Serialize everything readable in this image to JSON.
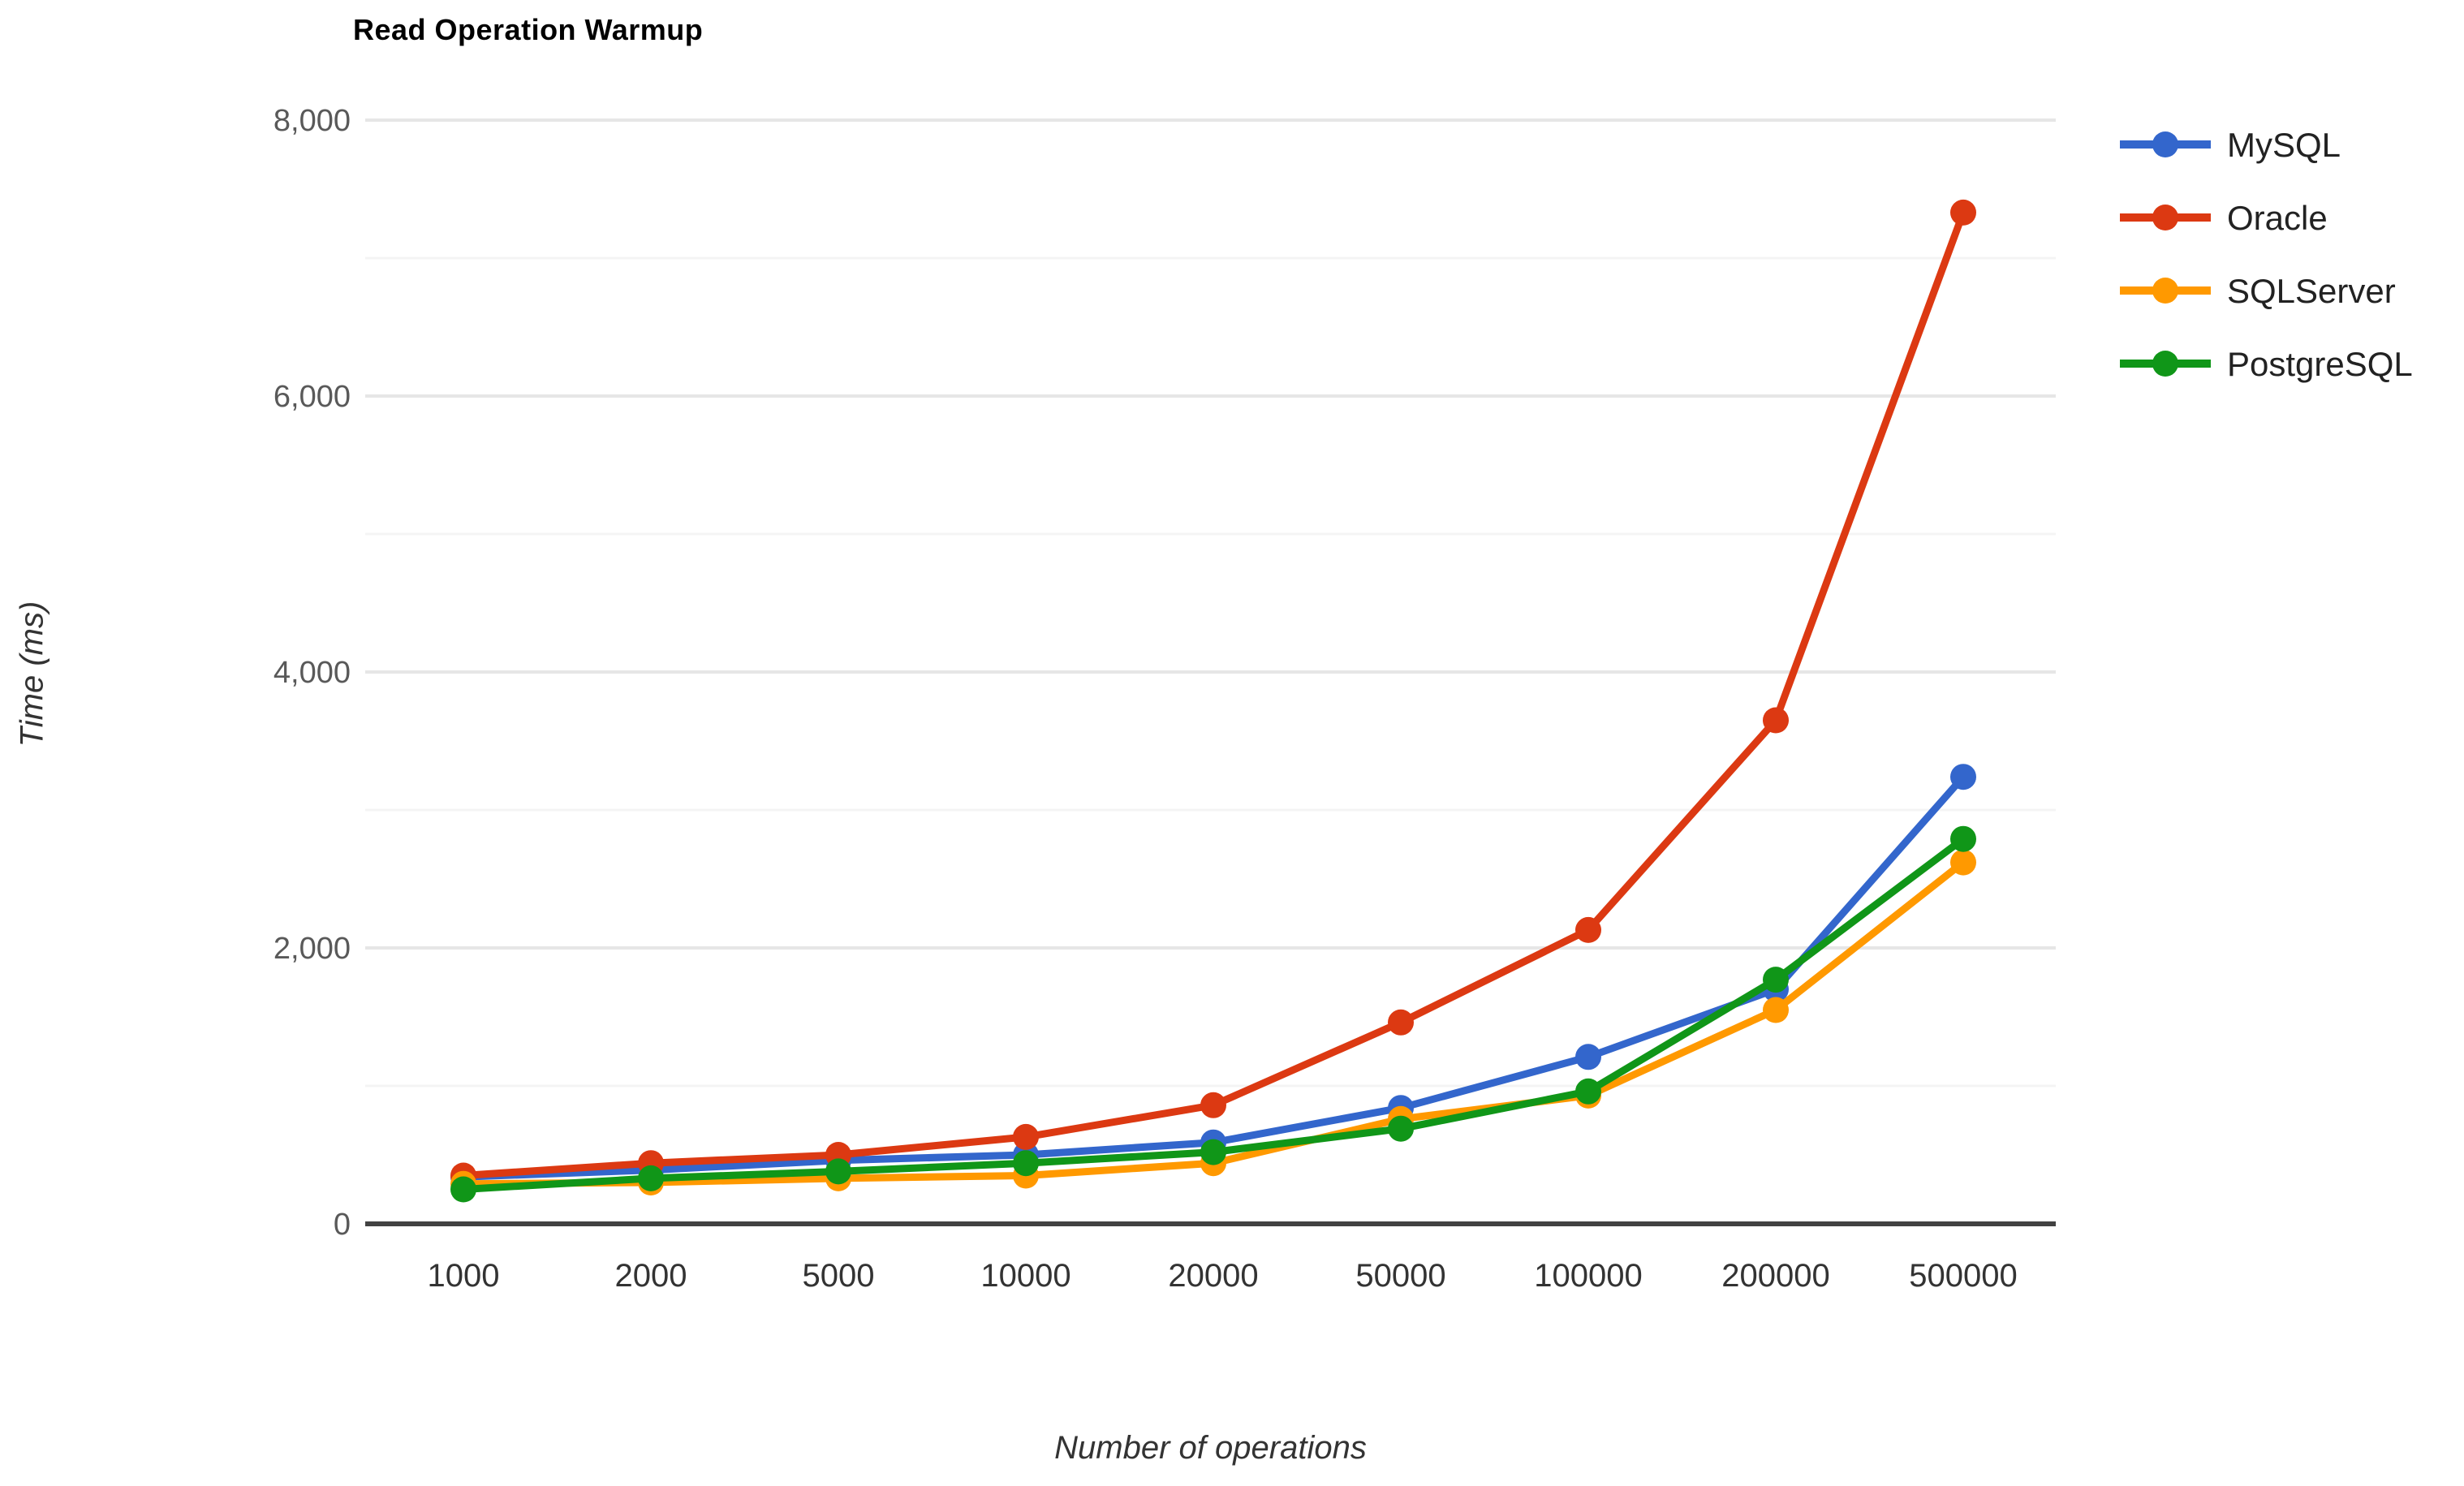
{
  "chart_data": {
    "type": "line",
    "title": "Read Operation Warmup",
    "xlabel": "Number of operations",
    "ylabel": "Time (ms)",
    "categories": [
      "1000",
      "2000",
      "5000",
      "10000",
      "20000",
      "50000",
      "100000",
      "200000",
      "500000"
    ],
    "series": [
      {
        "name": "MySQL",
        "color": "#3366CC",
        "values": [
          340,
          390,
          460,
          500,
          590,
          840,
          1210,
          1700,
          3240
        ]
      },
      {
        "name": "Oracle",
        "color": "#DC3912",
        "values": [
          350,
          440,
          500,
          630,
          860,
          1460,
          2130,
          3650,
          7330
        ]
      },
      {
        "name": "SQLServer",
        "color": "#FF9900",
        "values": [
          290,
          300,
          330,
          350,
          440,
          760,
          930,
          1550,
          2620
        ]
      },
      {
        "name": "PostgreSQL",
        "color": "#109618",
        "values": [
          250,
          330,
          380,
          440,
          520,
          690,
          960,
          1770,
          2790
        ]
      }
    ],
    "ylim": [
      0,
      8000
    ],
    "y_ticks": [
      {
        "value": 0,
        "label": "0"
      },
      {
        "value": 2000,
        "label": "2,000"
      },
      {
        "value": 4000,
        "label": "4,000"
      },
      {
        "value": 6000,
        "label": "6,000"
      },
      {
        "value": 8000,
        "label": "8,000"
      }
    ],
    "y_minor_ticks": [
      1000,
      3000,
      5000,
      7000
    ],
    "grid": "on",
    "legend_position": "right",
    "colors": {
      "axis_line": "#424242",
      "major_gridline": "#e6e6e6",
      "minor_gridline": "#f4f4f4",
      "title_text": "#000000",
      "axis_title_text": "#333333",
      "y_tick_text": "#595959",
      "x_tick_text": "#333333"
    }
  }
}
